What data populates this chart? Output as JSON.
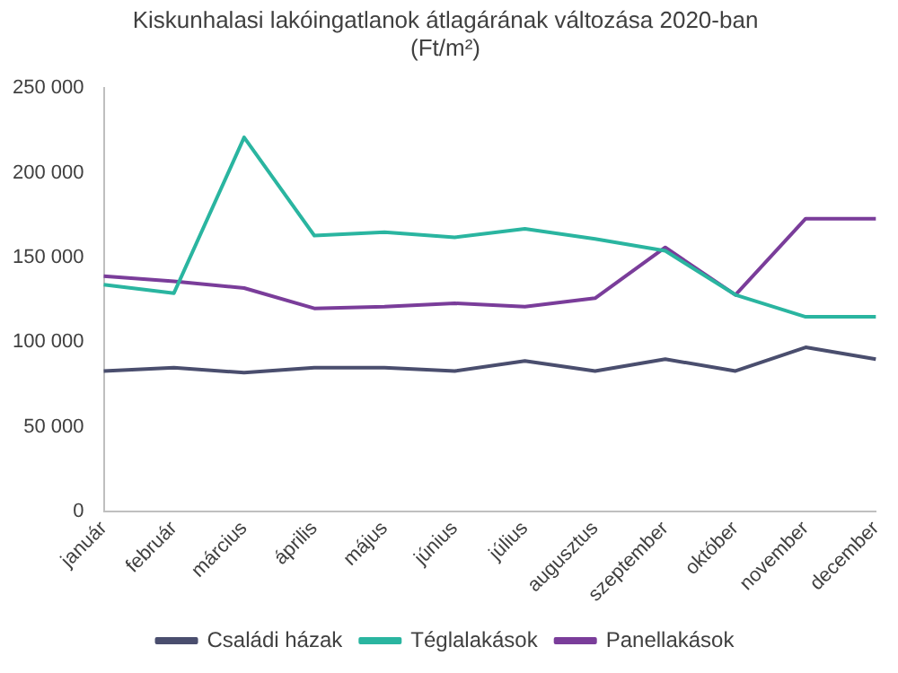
{
  "chart_data": {
    "type": "line",
    "title": "Kiskunhalasi lakóingatlanok átlagárának változása 2020-ban\n(Ft/m²)",
    "categories": [
      "január",
      "február",
      "március",
      "április",
      "május",
      "június",
      "július",
      "augusztus",
      "szeptember",
      "október",
      "november",
      "december"
    ],
    "series": [
      {
        "name": "Családi házak",
        "color": "#4a4e6e",
        "values": [
          83000,
          85000,
          82000,
          85000,
          85000,
          83000,
          89000,
          83000,
          90000,
          83000,
          97000,
          90000
        ]
      },
      {
        "name": "Téglalakások",
        "color": "#2ab5a0",
        "values": [
          134000,
          129000,
          221000,
          163000,
          165000,
          162000,
          167000,
          161000,
          154000,
          128000,
          115000,
          115000
        ]
      },
      {
        "name": "Panellakások",
        "color": "#7a3d9a",
        "values": [
          139000,
          136000,
          132000,
          120000,
          121000,
          123000,
          121000,
          126000,
          156000,
          128000,
          173000,
          173000
        ]
      }
    ],
    "ylim": [
      0,
      250000
    ],
    "yticks": [
      0,
      50000,
      100000,
      150000,
      200000,
      250000
    ],
    "grid": false,
    "legend": "bottom",
    "marker": "none",
    "line_style": "solid"
  }
}
